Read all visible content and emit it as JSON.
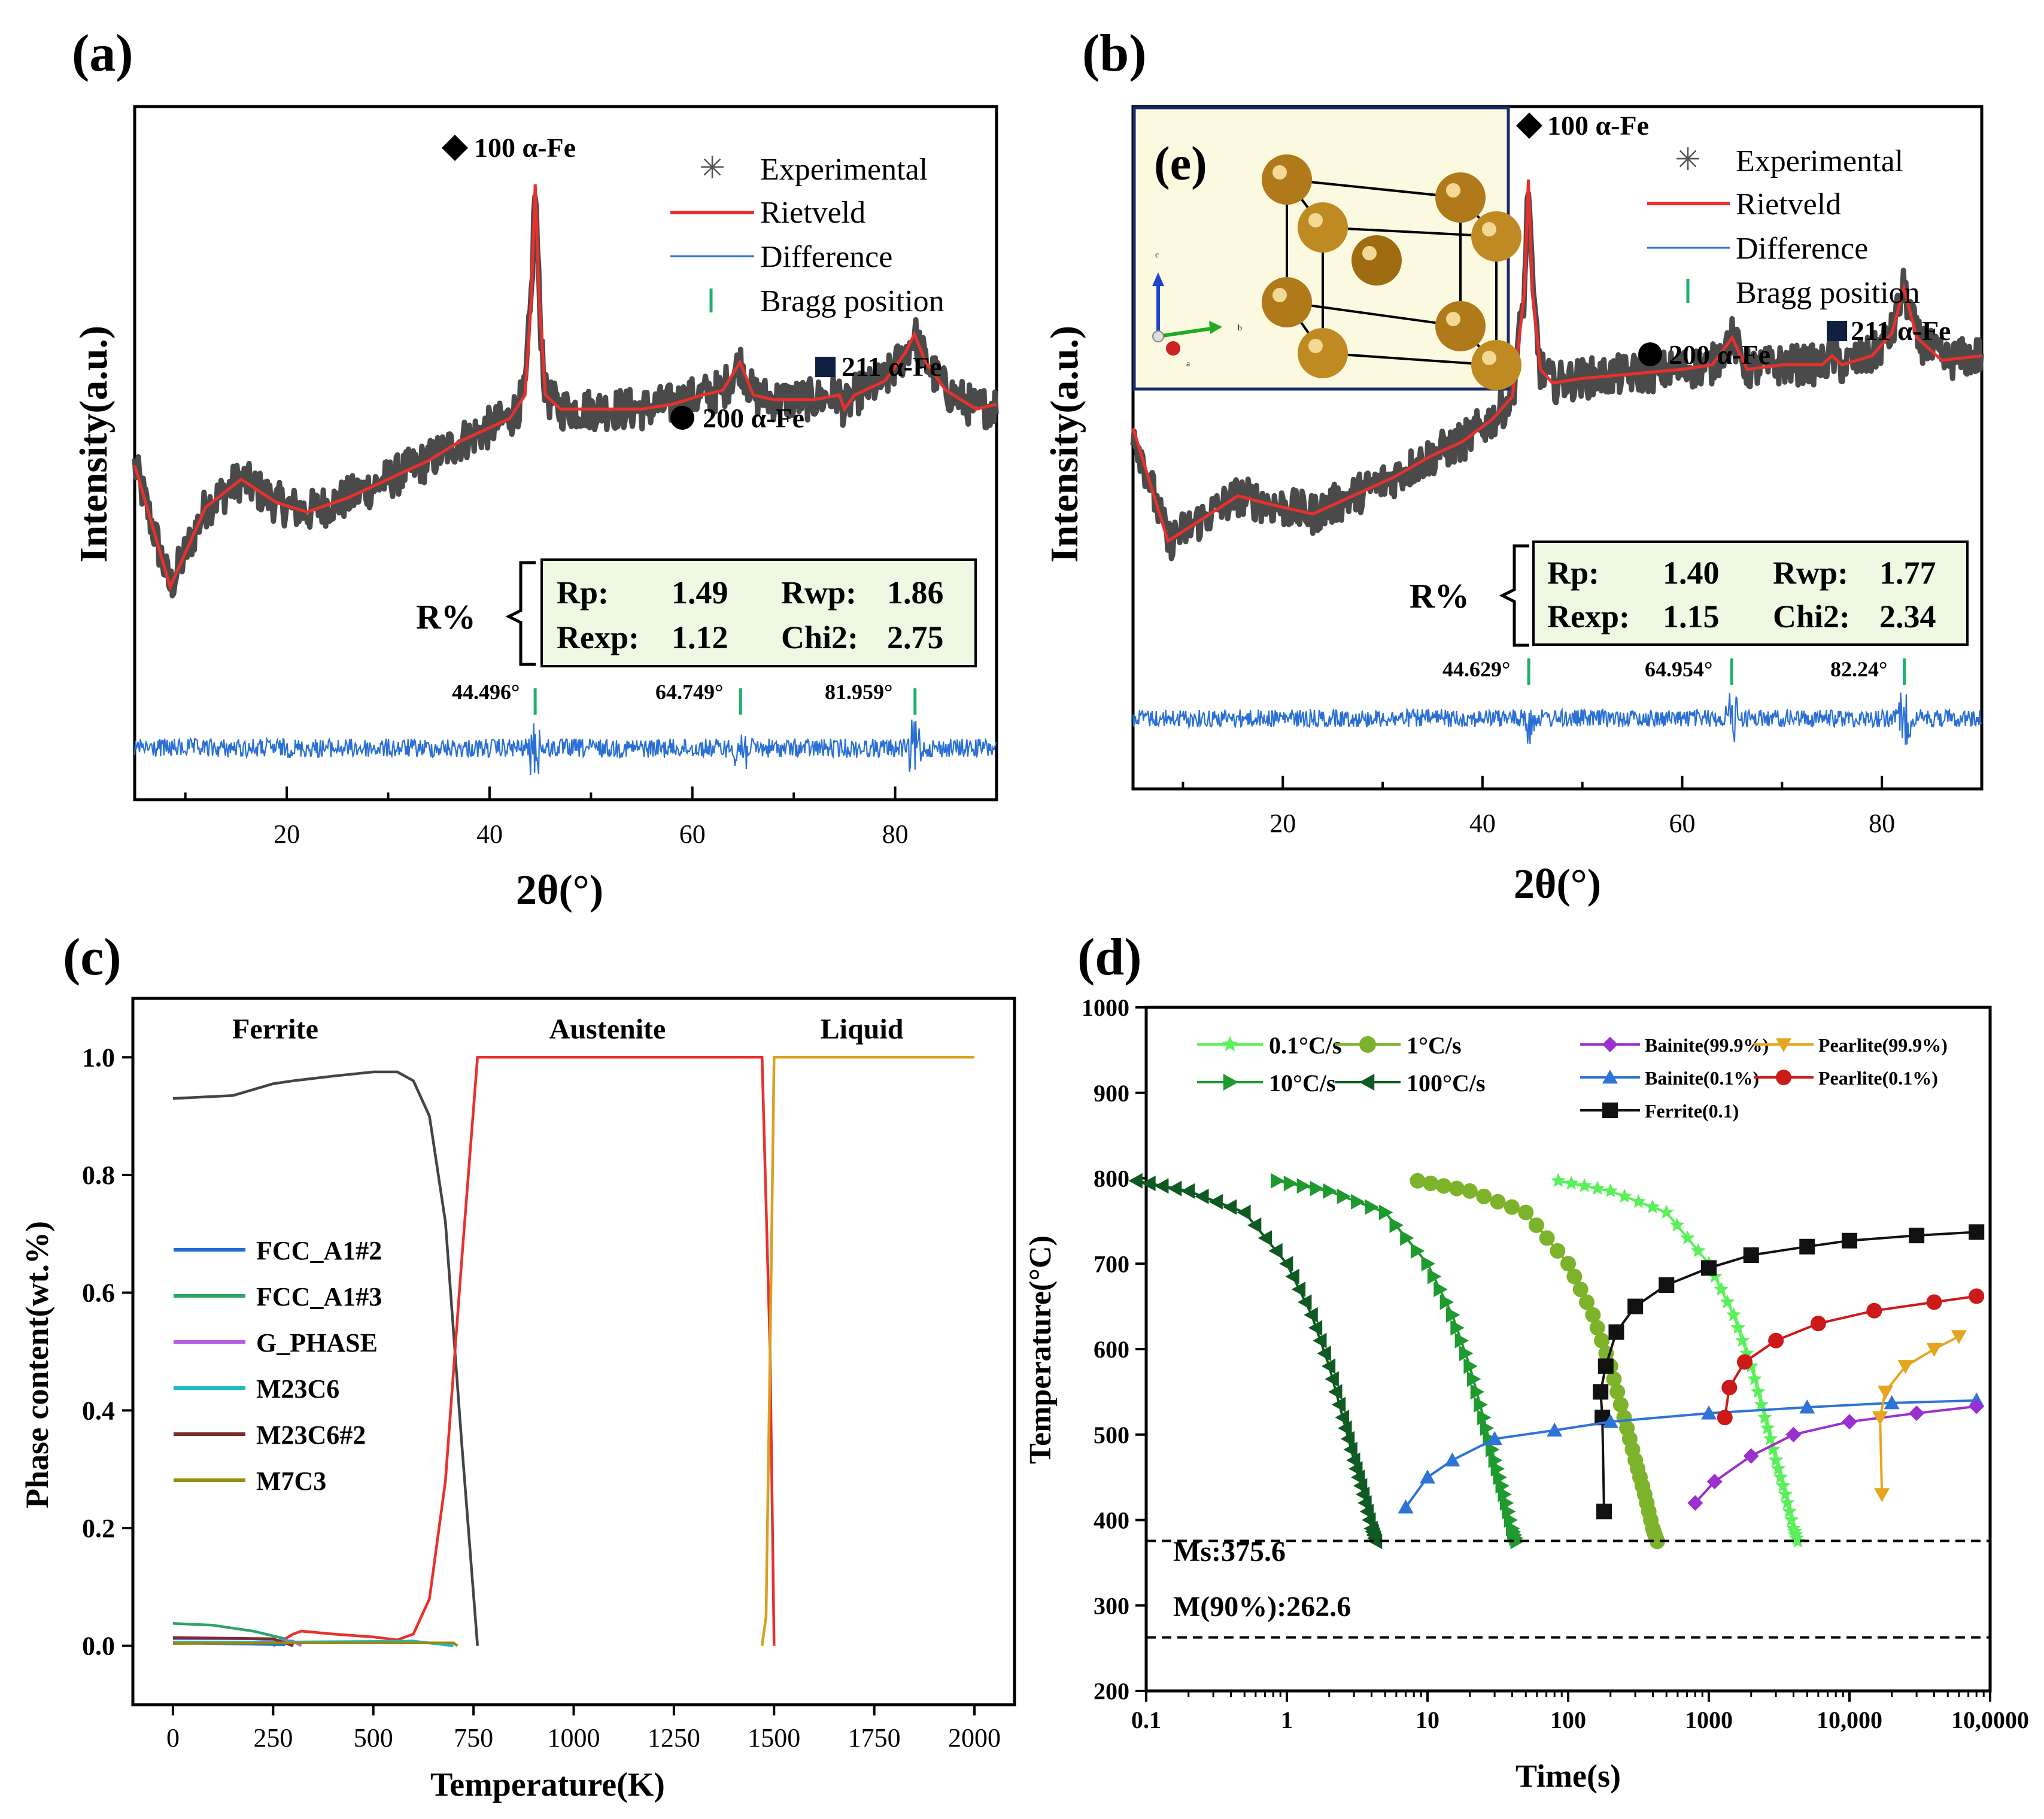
{
  "panels": {
    "a": {
      "label": "(a)",
      "ylabel": "Intensity(a.u.)",
      "xlabel": "2θ(°)",
      "xlim": [
        5,
        90
      ],
      "xticks": [
        "20",
        "40",
        "60",
        "80"
      ],
      "legend": [
        "Experimental",
        "Rietveld",
        "Difference",
        "Bragg position"
      ],
      "peak_labels": [
        "100 α-Fe",
        "200 α-Fe",
        "211 α-Fe"
      ],
      "bragg_labels": [
        "44.496°",
        "64.749°",
        "81.959°"
      ],
      "bragg_positions": [
        44.496,
        64.749,
        81.959
      ],
      "r_title": "R%",
      "r_values": {
        "rp_label": "Rp:",
        "rp": "1.49",
        "rwp_label": "Rwp:",
        "rwp": "1.86",
        "rexp_label": "Rexp:",
        "rexp": "1.12",
        "chi2_label": "Chi2:",
        "chi2": "2.75"
      }
    },
    "b": {
      "label": "(b)",
      "inset_label": "(e)",
      "ylabel": "Intensity(a.u.)",
      "xlabel": "2θ(°)",
      "xlim": [
        5,
        90
      ],
      "xticks": [
        "20",
        "40",
        "60",
        "80"
      ],
      "legend": [
        "Experimental",
        "Rietveld",
        "Difference",
        "Bragg position"
      ],
      "peak_labels": [
        "100 α-Fe",
        "200 α-Fe",
        "211 α-Fe"
      ],
      "bragg_labels": [
        "44.629°",
        "64.954°",
        "82.24°"
      ],
      "bragg_positions": [
        44.629,
        64.954,
        82.24
      ],
      "r_title": "R%",
      "r_values": {
        "rp_label": "Rp:",
        "rp": "1.40",
        "rwp_label": "Rwp:",
        "rwp": "1.77",
        "rexp_label": "Rexp:",
        "rexp": "1.15",
        "chi2_label": "Chi2:",
        "chi2": "2.34"
      },
      "axes_labels": {
        "c": "c",
        "b": "b",
        "a": "a"
      }
    },
    "c": {
      "label": "(c)",
      "ylabel": "Phase content(wt.%)",
      "xlabel": "Temperature(K)",
      "xticks": [
        "0",
        "250",
        "500",
        "750",
        "1000",
        "1250",
        "1500",
        "1750",
        "2000"
      ],
      "yticks": [
        "0.0",
        "0.2",
        "0.4",
        "0.6",
        "0.8",
        "1.0"
      ],
      "regions": [
        "Ferrite",
        "Austenite",
        "Liquid"
      ],
      "legend": [
        "FCC_A1#2",
        "FCC_A1#3",
        "G_PHASE",
        "M23C6",
        "M23C6#2",
        "M7C3"
      ]
    },
    "d": {
      "label": "(d)",
      "ylabel": "Temperature(°C)",
      "xlabel": "Time(s)",
      "xticks": [
        "0.1",
        "1",
        "10",
        "100",
        "1000",
        "10,000",
        "10,0000"
      ],
      "yticks": [
        "200",
        "300",
        "400",
        "500",
        "600",
        "700",
        "800",
        "900",
        "1000"
      ],
      "legend_rates": [
        "0.1°C/s",
        "1°C/s",
        "10°C/s",
        "100°C/s"
      ],
      "legend_phases": [
        "Bainite(99.9%)",
        "Pearlite(99.9%)",
        "Bainite(0.1%)",
        "Pearlite(0.1%)",
        "Ferrite(0.1)"
      ],
      "ms_label": "Ms:375.6",
      "m90_label": "M(90%):262.6"
    }
  },
  "chart_data": [
    {
      "type": "line",
      "title": "(a)",
      "xlabel": "2θ(°)",
      "ylabel": "Intensity(a.u.)",
      "xlim": [
        5,
        90
      ],
      "series": [
        {
          "name": "Rietveld",
          "x": [
            5,
            8.5,
            12,
            15.5,
            19,
            22,
            26,
            30,
            34,
            37,
            40,
            42,
            43.5,
            44.1,
            44.5,
            44.9,
            45.5,
            47,
            50,
            55,
            58,
            61,
            63,
            64.7,
            66,
            68,
            72,
            74.5,
            75,
            76,
            79,
            81,
            81.9,
            83,
            85,
            88,
            90
          ],
          "y": [
            0.4,
            0.14,
            0.31,
            0.37,
            0.32,
            0.3,
            0.33,
            0.37,
            0.41,
            0.45,
            0.48,
            0.5,
            0.55,
            0.75,
            1.0,
            0.75,
            0.55,
            0.52,
            0.52,
            0.52,
            0.53,
            0.55,
            0.56,
            0.62,
            0.55,
            0.54,
            0.54,
            0.55,
            0.52,
            0.55,
            0.58,
            0.64,
            0.68,
            0.62,
            0.56,
            0.52,
            0.53
          ]
        },
        {
          "name": "Bragg position",
          "x": [
            44.496,
            64.749,
            81.959
          ]
        }
      ]
    },
    {
      "type": "line",
      "title": "(b)",
      "xlabel": "2θ(°)",
      "ylabel": "Intensity(a.u.)",
      "xlim": [
        5,
        90
      ],
      "series": [
        {
          "name": "Rietveld",
          "x": [
            5,
            8.5,
            12,
            15.5,
            19,
            23,
            27,
            31,
            35,
            38,
            41,
            43,
            44.2,
            44.6,
            45,
            45.8,
            47,
            50,
            55,
            60,
            63,
            65,
            66.5,
            70,
            74,
            75,
            76,
            79,
            81,
            82.2,
            83.5,
            86,
            90
          ],
          "y": [
            0.45,
            0.2,
            0.25,
            0.3,
            0.28,
            0.26,
            0.3,
            0.34,
            0.39,
            0.42,
            0.47,
            0.52,
            0.75,
            1.0,
            0.75,
            0.58,
            0.55,
            0.56,
            0.57,
            0.58,
            0.59,
            0.65,
            0.58,
            0.59,
            0.59,
            0.61,
            0.59,
            0.61,
            0.66,
            0.76,
            0.65,
            0.6,
            0.61
          ]
        },
        {
          "name": "Bragg position",
          "x": [
            44.629,
            64.954,
            82.24
          ]
        }
      ]
    },
    {
      "type": "line",
      "title": "(c)",
      "xlabel": "Temperature(K)",
      "ylabel": "Phase content(wt.%)",
      "xlim": [
        -100,
        2100
      ],
      "ylim": [
        -0.1,
        1.1
      ],
      "series": [
        {
          "name": "Ferrite",
          "x": [
            0,
            150,
            250,
            300,
            400,
            500,
            560,
            600,
            640,
            680,
            720,
            760
          ],
          "y": [
            0.93,
            0.935,
            0.955,
            0.96,
            0.968,
            0.975,
            0.975,
            0.96,
            0.9,
            0.72,
            0.35,
            0.0
          ]
        },
        {
          "name": "Austenite",
          "x": [
            250,
            300,
            320,
            400,
            500,
            560,
            600,
            640,
            680,
            720,
            760,
            1470,
            1490,
            1500
          ],
          "y": [
            0.0,
            0.02,
            0.025,
            0.02,
            0.015,
            0.01,
            0.02,
            0.08,
            0.28,
            0.65,
            1.0,
            1.0,
            0.5,
            0.0
          ]
        },
        {
          "name": "Liquid",
          "x": [
            1470,
            1480,
            1490,
            1500,
            2000
          ],
          "y": [
            0.0,
            0.05,
            0.5,
            1.0,
            1.0
          ]
        },
        {
          "name": "FCC_A1#2",
          "x": [
            0,
            280
          ],
          "y": [
            0.005,
            0.002
          ]
        },
        {
          "name": "FCC_A1#3",
          "x": [
            0,
            100,
            200,
            280,
            300
          ],
          "y": [
            0.038,
            0.035,
            0.025,
            0.012,
            0.0
          ]
        },
        {
          "name": "G_PHASE",
          "x": [
            0,
            200,
            300,
            320
          ],
          "y": [
            0.012,
            0.012,
            0.008,
            0.0
          ]
        },
        {
          "name": "M23C6",
          "x": [
            0,
            200,
            400,
            600,
            700
          ],
          "y": [
            0.006,
            0.006,
            0.007,
            0.008,
            0.0
          ]
        },
        {
          "name": "M23C6#2",
          "x": [
            0,
            250,
            300
          ],
          "y": [
            0.014,
            0.012,
            0.0
          ]
        },
        {
          "name": "M7C3",
          "x": [
            0,
            300,
            600,
            700,
            710
          ],
          "y": [
            0.004,
            0.005,
            0.005,
            0.005,
            0.0
          ]
        }
      ]
    },
    {
      "type": "line",
      "title": "(d)",
      "xlabel": "Time(s)",
      "ylabel": "Temperature(°C)",
      "xscale": "log",
      "xlim": [
        0.1,
        100000
      ],
      "ylim": [
        200,
        1000
      ],
      "series": [
        {
          "name": "0.1°C/s",
          "x": [
            85,
            200,
            500,
            1000,
            1500,
            2000,
            2500,
            3000,
            3500,
            4000,
            4300
          ],
          "y": [
            797,
            785,
            760,
            700,
            640,
            580,
            520,
            470,
            430,
            390,
            375
          ]
        },
        {
          "name": "1°C/s",
          "x": [
            8.5,
            20,
            50,
            100,
            150,
            200,
            250,
            300,
            350,
            400,
            430
          ],
          "y": [
            797,
            785,
            760,
            700,
            640,
            580,
            520,
            470,
            430,
            390,
            375
          ]
        },
        {
          "name": "10°C/s",
          "x": [
            0.85,
            2,
            5,
            10,
            15,
            20,
            25,
            30,
            35,
            40,
            43
          ],
          "y": [
            797,
            785,
            760,
            700,
            640,
            580,
            520,
            470,
            430,
            390,
            375
          ]
        },
        {
          "name": "100°C/s",
          "x": [
            0.085,
            0.2,
            0.5,
            1,
            1.5,
            2,
            2.5,
            3,
            3.5,
            4,
            4.3
          ],
          "y": [
            797,
            785,
            760,
            700,
            640,
            580,
            520,
            470,
            430,
            390,
            375
          ]
        },
        {
          "name": "Ferrite(0.1)",
          "x": [
            180,
            175,
            170,
            185,
            220,
            300,
            500,
            1000,
            2000,
            5000,
            10000,
            30000,
            80000
          ],
          "y": [
            410,
            520,
            550,
            580,
            620,
            650,
            675,
            695,
            710,
            720,
            727,
            733,
            737
          ]
        },
        {
          "name": "Bainite(0.1%)",
          "x": [
            7,
            10,
            15,
            30,
            80,
            200,
            1000,
            5000,
            20000,
            80000
          ],
          "y": [
            415,
            450,
            470,
            495,
            505,
            515,
            525,
            532,
            537,
            540
          ]
        },
        {
          "name": "Pearlite(0.1%)",
          "x": [
            1300,
            1400,
            1800,
            3000,
            6000,
            15000,
            40000,
            80000
          ],
          "y": [
            520,
            555,
            585,
            610,
            630,
            645,
            655,
            662
          ]
        },
        {
          "name": "Bainite(99.9%)",
          "x": [
            800,
            1100,
            2000,
            4000,
            10000,
            30000,
            80000
          ],
          "y": [
            420,
            445,
            475,
            500,
            515,
            525,
            533
          ]
        },
        {
          "name": "Pearlite(99.9%)",
          "x": [
            17000,
            16500,
            18000,
            25000,
            40000,
            60000
          ],
          "y": [
            430,
            520,
            550,
            580,
            600,
            615
          ]
        },
        {
          "name": "Ms:375.6",
          "y": [
            375.6
          ]
        },
        {
          "name": "M(90%):262.6",
          "y": [
            262.6
          ]
        }
      ]
    }
  ]
}
